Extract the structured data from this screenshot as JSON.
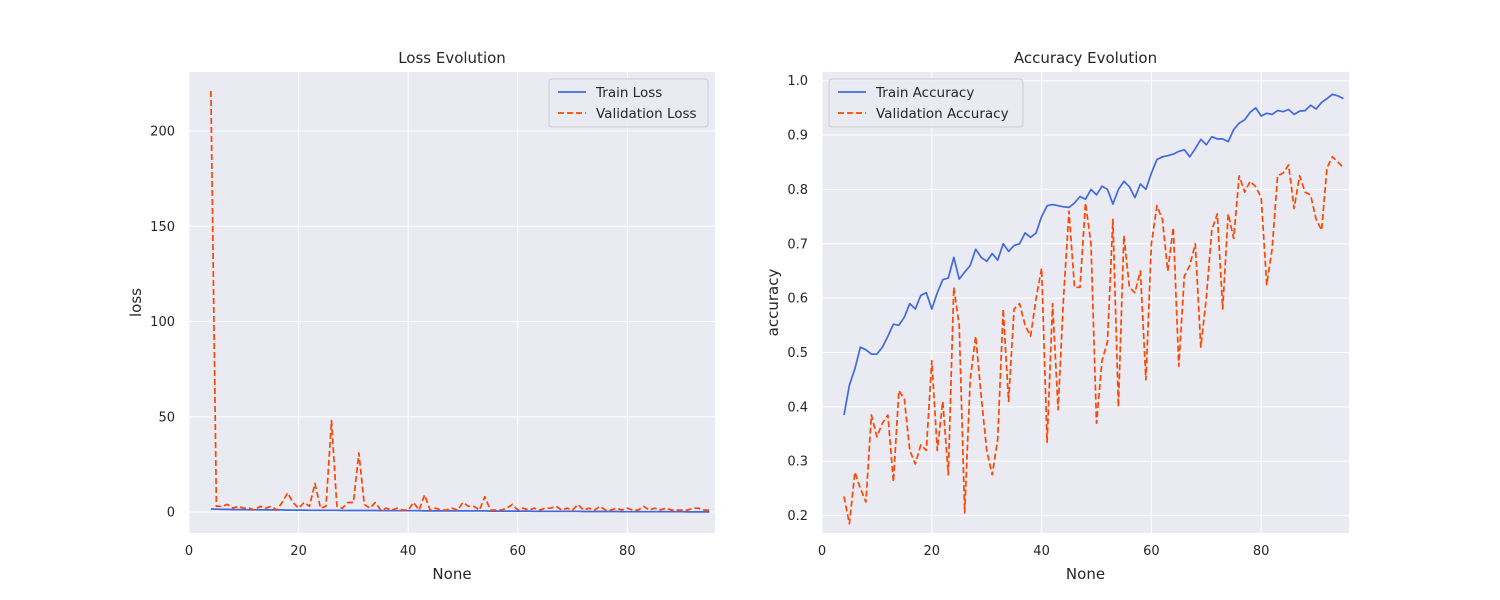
{
  "colors": {
    "plot_background": "#eaeaf2",
    "grid": "#ffffff",
    "train": "#4169e1",
    "validation": "#ff4500"
  },
  "chart_data": [
    {
      "type": "line",
      "title": "Loss Evolution",
      "xlabel": "None",
      "ylabel": "loss",
      "xlim": [
        0,
        96
      ],
      "ylim": [
        -11,
        231
      ],
      "xticks": [
        0,
        20,
        40,
        60,
        80
      ],
      "yticks": [
        0,
        50,
        100,
        150,
        200
      ],
      "grid": true,
      "legend_position": "top-right",
      "series": [
        {
          "name": "Train Loss",
          "style": "solid",
          "x": [
            4,
            5,
            6,
            7,
            8,
            9,
            10,
            11,
            12,
            13,
            14,
            15,
            16,
            17,
            18,
            19,
            20,
            21,
            22,
            23,
            24,
            25,
            26,
            27,
            28,
            29,
            30,
            31,
            32,
            33,
            34,
            35,
            36,
            37,
            38,
            39,
            40,
            41,
            42,
            43,
            44,
            45,
            46,
            47,
            48,
            49,
            50,
            51,
            52,
            53,
            54,
            55,
            56,
            57,
            58,
            59,
            60,
            61,
            62,
            63,
            64,
            65,
            66,
            67,
            68,
            69,
            70,
            71,
            72,
            73,
            74,
            75,
            76,
            77,
            78,
            79,
            80,
            81,
            82,
            83,
            84,
            85,
            86,
            87,
            88,
            89,
            90,
            91,
            92,
            93,
            94,
            95
          ],
          "y": [
            1.6,
            1.5,
            1.4,
            1.4,
            1.3,
            1.3,
            1.3,
            1.2,
            1.2,
            1.2,
            1.1,
            1.1,
            1.1,
            1.1,
            1.0,
            1.0,
            1.0,
            1.0,
            0.9,
            0.9,
            0.9,
            0.9,
            0.9,
            0.9,
            0.8,
            0.8,
            0.8,
            0.8,
            0.8,
            0.8,
            0.8,
            0.7,
            0.7,
            0.7,
            0.7,
            0.7,
            0.7,
            0.7,
            0.7,
            0.6,
            0.6,
            0.6,
            0.6,
            0.6,
            0.6,
            0.6,
            0.6,
            0.6,
            0.6,
            0.6,
            0.6,
            0.5,
            0.5,
            0.5,
            0.5,
            0.5,
            0.5,
            0.5,
            0.5,
            0.4,
            0.4,
            0.4,
            0.4,
            0.4,
            0.4,
            0.4,
            0.4,
            0.4,
            0.3,
            0.3,
            0.3,
            0.3,
            0.3,
            0.3,
            0.3,
            0.2,
            0.2,
            0.2,
            0.2,
            0.2,
            0.2,
            0.2,
            0.2,
            0.2,
            0.2,
            0.2,
            0.2,
            0.1,
            0.1,
            0.1,
            0.1,
            0.1
          ]
        },
        {
          "name": "Validation Loss",
          "style": "dashed",
          "x": [
            4,
            5,
            6,
            7,
            8,
            9,
            10,
            11,
            12,
            13,
            14,
            15,
            16,
            17,
            18,
            19,
            20,
            21,
            22,
            23,
            24,
            25,
            26,
            27,
            28,
            29,
            30,
            31,
            32,
            33,
            34,
            35,
            36,
            37,
            38,
            39,
            40,
            41,
            42,
            43,
            44,
            45,
            46,
            47,
            48,
            49,
            50,
            51,
            52,
            53,
            54,
            55,
            56,
            57,
            58,
            59,
            60,
            61,
            62,
            63,
            64,
            65,
            66,
            67,
            68,
            69,
            70,
            71,
            72,
            73,
            74,
            75,
            76,
            77,
            78,
            79,
            80,
            81,
            82,
            83,
            84,
            85,
            86,
            87,
            88,
            89,
            90,
            91,
            92,
            93,
            94,
            95
          ],
          "y": [
            221,
            3,
            3,
            4,
            2,
            3,
            2,
            2,
            1,
            3,
            2,
            3,
            1,
            5,
            10,
            5,
            2,
            5,
            3,
            15,
            2,
            3,
            48,
            3,
            2,
            5,
            5,
            31,
            4,
            2,
            5,
            1,
            2,
            1,
            2,
            1,
            1,
            5,
            1,
            9,
            1,
            2,
            1,
            1,
            2,
            1,
            5,
            3,
            3,
            1,
            8,
            1,
            1,
            1,
            2,
            4,
            1,
            2,
            1,
            2,
            1,
            2,
            2,
            3,
            1,
            2,
            1,
            4,
            1,
            2,
            1,
            3,
            1,
            1,
            2,
            1,
            2,
            1,
            1,
            3,
            1,
            2,
            1,
            2,
            1,
            1,
            1,
            1,
            2,
            2,
            1,
            1
          ]
        }
      ]
    },
    {
      "type": "line",
      "title": "Accuracy Evolution",
      "xlabel": "None",
      "ylabel": "accuracy",
      "xlim": [
        0,
        96
      ],
      "ylim": [
        0.168,
        1.016
      ],
      "xticks": [
        0,
        20,
        40,
        60,
        80
      ],
      "yticks": [
        0.2,
        0.3,
        0.4,
        0.5,
        0.6,
        0.7,
        0.8,
        0.9,
        1.0
      ],
      "grid": true,
      "legend_position": "top-left",
      "series": [
        {
          "name": "Train Accuracy",
          "style": "solid",
          "x": [
            4,
            5,
            6,
            7,
            8,
            9,
            10,
            11,
            12,
            13,
            14,
            15,
            16,
            17,
            18,
            19,
            20,
            21,
            22,
            23,
            24,
            25,
            26,
            27,
            28,
            29,
            30,
            31,
            32,
            33,
            34,
            35,
            36,
            37,
            38,
            39,
            40,
            41,
            42,
            43,
            44,
            45,
            46,
            47,
            48,
            49,
            50,
            51,
            52,
            53,
            54,
            55,
            56,
            57,
            58,
            59,
            60,
            61,
            62,
            63,
            64,
            65,
            66,
            67,
            68,
            69,
            70,
            71,
            72,
            73,
            74,
            75,
            76,
            77,
            78,
            79,
            80,
            81,
            82,
            83,
            84,
            85,
            86,
            87,
            88,
            89,
            90,
            91,
            92,
            93,
            94,
            95
          ],
          "y": [
            0.385,
            0.44,
            0.47,
            0.51,
            0.505,
            0.497,
            0.497,
            0.51,
            0.53,
            0.552,
            0.55,
            0.565,
            0.59,
            0.58,
            0.605,
            0.61,
            0.58,
            0.61,
            0.634,
            0.637,
            0.675,
            0.635,
            0.648,
            0.66,
            0.69,
            0.675,
            0.668,
            0.682,
            0.67,
            0.7,
            0.686,
            0.697,
            0.7,
            0.72,
            0.712,
            0.72,
            0.75,
            0.77,
            0.772,
            0.77,
            0.768,
            0.767,
            0.775,
            0.787,
            0.782,
            0.8,
            0.79,
            0.806,
            0.8,
            0.773,
            0.8,
            0.815,
            0.805,
            0.785,
            0.81,
            0.8,
            0.83,
            0.855,
            0.86,
            0.862,
            0.865,
            0.87,
            0.873,
            0.86,
            0.875,
            0.892,
            0.882,
            0.897,
            0.893,
            0.893,
            0.888,
            0.91,
            0.922,
            0.928,
            0.942,
            0.95,
            0.935,
            0.94,
            0.938,
            0.945,
            0.943,
            0.947,
            0.938,
            0.944,
            0.945,
            0.955,
            0.948,
            0.96,
            0.967,
            0.975,
            0.972,
            0.967
          ]
        },
        {
          "name": "Validation Accuracy",
          "style": "dashed",
          "x": [
            4,
            5,
            6,
            7,
            8,
            9,
            10,
            11,
            12,
            13,
            14,
            15,
            16,
            17,
            18,
            19,
            20,
            21,
            22,
            23,
            24,
            25,
            26,
            27,
            28,
            29,
            30,
            31,
            32,
            33,
            34,
            35,
            36,
            37,
            38,
            39,
            40,
            41,
            42,
            43,
            44,
            45,
            46,
            47,
            48,
            49,
            50,
            51,
            52,
            53,
            54,
            55,
            56,
            57,
            58,
            59,
            60,
            61,
            62,
            63,
            64,
            65,
            66,
            67,
            68,
            69,
            70,
            71,
            72,
            73,
            74,
            75,
            76,
            77,
            78,
            79,
            80,
            81,
            82,
            83,
            84,
            85,
            86,
            87,
            88,
            89,
            90,
            91,
            92,
            93,
            94,
            95
          ],
          "y": [
            0.235,
            0.185,
            0.28,
            0.25,
            0.225,
            0.385,
            0.345,
            0.37,
            0.385,
            0.262,
            0.43,
            0.415,
            0.32,
            0.295,
            0.33,
            0.32,
            0.485,
            0.32,
            0.41,
            0.275,
            0.62,
            0.55,
            0.205,
            0.45,
            0.53,
            0.42,
            0.32,
            0.275,
            0.34,
            0.58,
            0.41,
            0.58,
            0.59,
            0.55,
            0.53,
            0.6,
            0.655,
            0.335,
            0.59,
            0.395,
            0.6,
            0.76,
            0.62,
            0.62,
            0.775,
            0.7,
            0.37,
            0.485,
            0.52,
            0.745,
            0.4,
            0.715,
            0.62,
            0.61,
            0.65,
            0.45,
            0.7,
            0.77,
            0.745,
            0.65,
            0.73,
            0.475,
            0.64,
            0.66,
            0.7,
            0.51,
            0.6,
            0.725,
            0.755,
            0.58,
            0.755,
            0.71,
            0.825,
            0.795,
            0.815,
            0.805,
            0.785,
            0.625,
            0.69,
            0.825,
            0.83,
            0.845,
            0.765,
            0.825,
            0.795,
            0.79,
            0.745,
            0.725,
            0.84,
            0.86,
            0.85,
            0.84
          ]
        }
      ]
    }
  ]
}
